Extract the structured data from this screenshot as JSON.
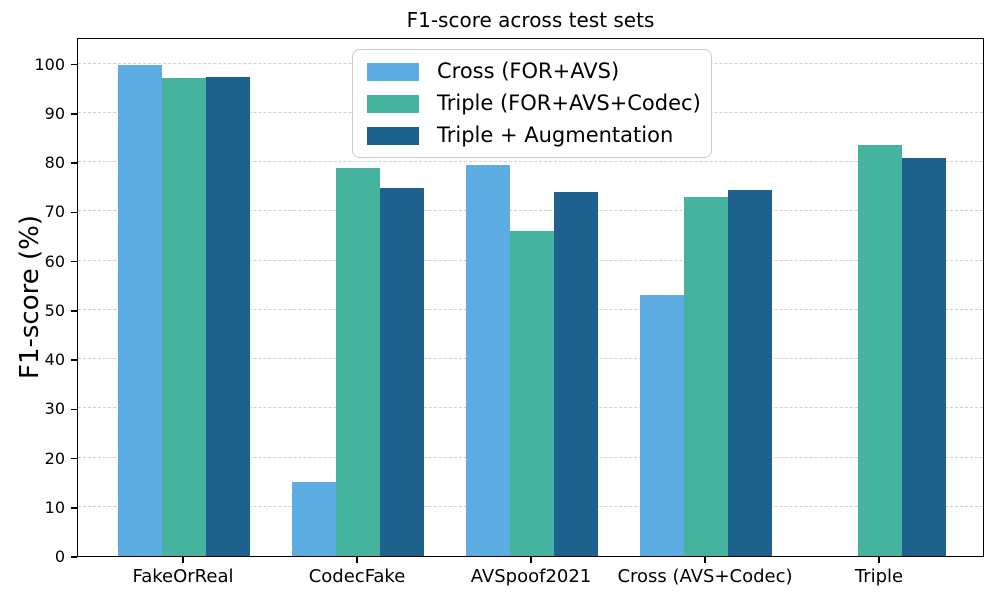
{
  "title": "F1-score across test sets",
  "ylabel": "F1-score (%)",
  "chart_data": {
    "type": "bar",
    "title": "F1-score across test sets",
    "xlabel": "",
    "ylabel": "F1-score (%)",
    "categories": [
      "FakeOrReal",
      "CodecFake",
      "AVSpoof2021",
      "Cross (AVS+Codec)",
      "Triple"
    ],
    "series": [
      {
        "name": "Cross (FOR+AVS)",
        "color": "#5DADE2",
        "values": [
          99.8,
          15.0,
          79.5,
          53.0,
          0.0
        ]
      },
      {
        "name": "Triple (FOR+AVS+Codec)",
        "color": "#45B39D",
        "values": [
          97.0,
          78.8,
          66.0,
          72.9,
          83.4
        ]
      },
      {
        "name": "Triple + Augmentation",
        "color": "#1F618D",
        "values": [
          97.3,
          74.7,
          74.0,
          74.3,
          80.8
        ]
      }
    ],
    "ylim": [
      0,
      105.4
    ],
    "yticks": [
      0,
      10,
      20,
      30,
      40,
      50,
      60,
      70,
      80,
      90,
      100
    ],
    "grid": "horizontal-dashed",
    "legend_position": "upper-center-inside"
  },
  "colors": {
    "grid": "#cfcfcf",
    "spine": "#000000",
    "legend_border": "#cccccc",
    "background": "#ffffff"
  }
}
